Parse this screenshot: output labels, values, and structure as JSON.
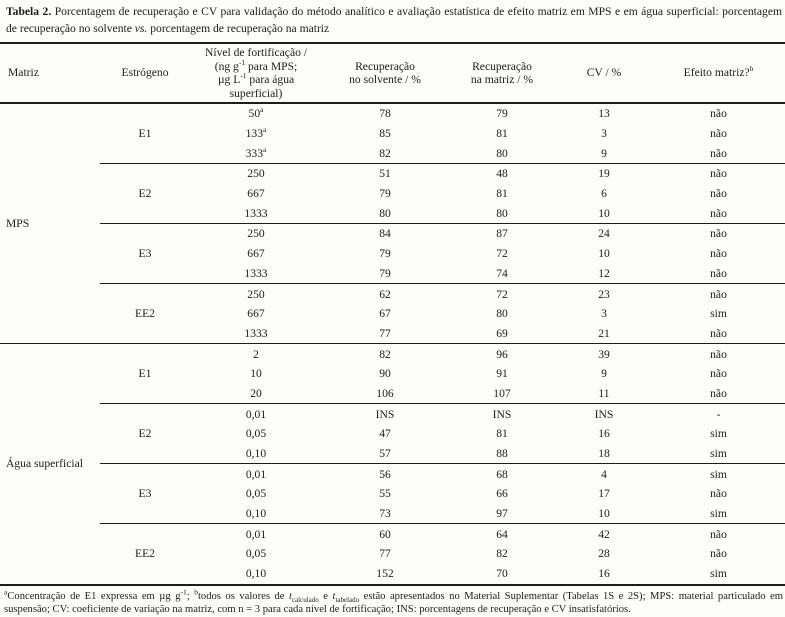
{
  "colors": {
    "background": "#fdfdfc",
    "text": "#1c1c1c",
    "rule": "#1c1c1c"
  },
  "caption": {
    "label": "Tabela 2.",
    "before_vs": " Porcentagem de recuperação e CV para validação do método analítico e avaliação estatística de efeito matriz em MPS e em água superficial: porcentagem de recuperação no solvente ",
    "vs": "vs.",
    "after_vs": " porcentagem de recuperação na matriz"
  },
  "table": {
    "headers": {
      "matrix": "Matriz",
      "estrogen": "Estrógeno",
      "level_line1": "Nível de fortificação /",
      "level_line2_pre": "(ng g",
      "level_line2_sup": "-1",
      "level_line2_post": " para MPS;",
      "level_line3_pre": "µg L",
      "level_line3_sup": "-1",
      "level_line3_post": " para água superficial)",
      "rec_solvent_line1": "Recuperação",
      "rec_solvent_line2": "no solvente / %",
      "rec_matrix_line1": "Recuperação",
      "rec_matrix_line2": "na matriz / %",
      "cv": "CV / %",
      "effect_pre": "Efeito matriz?",
      "effect_sup": "b"
    },
    "sections": [
      {
        "matrix": "MPS",
        "groups": [
          {
            "estrogen": "E1",
            "rows": [
              {
                "level": "50",
                "level_sup": "a",
                "recovery_solvent": "78",
                "recovery_matrix": "79",
                "cv": "13",
                "effect": "não"
              },
              {
                "level": "133",
                "level_sup": "a",
                "recovery_solvent": "85",
                "recovery_matrix": "81",
                "cv": "3",
                "effect": "não"
              },
              {
                "level": "333",
                "level_sup": "a",
                "recovery_solvent": "82",
                "recovery_matrix": "80",
                "cv": "9",
                "effect": "não"
              }
            ]
          },
          {
            "estrogen": "E2",
            "rows": [
              {
                "level": "250",
                "recovery_solvent": "51",
                "recovery_matrix": "48",
                "cv": "19",
                "effect": "não"
              },
              {
                "level": "667",
                "recovery_solvent": "79",
                "recovery_matrix": "81",
                "cv": "6",
                "effect": "não"
              },
              {
                "level": "1333",
                "recovery_solvent": "80",
                "recovery_matrix": "80",
                "cv": "10",
                "effect": "não"
              }
            ]
          },
          {
            "estrogen": "E3",
            "rows": [
              {
                "level": "250",
                "recovery_solvent": "84",
                "recovery_matrix": "87",
                "cv": "24",
                "effect": "não"
              },
              {
                "level": "667",
                "recovery_solvent": "79",
                "recovery_matrix": "72",
                "cv": "10",
                "effect": "não"
              },
              {
                "level": "1333",
                "recovery_solvent": "79",
                "recovery_matrix": "74",
                "cv": "12",
                "effect": "não"
              }
            ]
          },
          {
            "estrogen": "EE2",
            "rows": [
              {
                "level": "250",
                "recovery_solvent": "62",
                "recovery_matrix": "72",
                "cv": "23",
                "effect": "não"
              },
              {
                "level": "667",
                "recovery_solvent": "67",
                "recovery_matrix": "80",
                "cv": "3",
                "effect": "sim"
              },
              {
                "level": "1333",
                "recovery_solvent": "77",
                "recovery_matrix": "69",
                "cv": "21",
                "effect": "não"
              }
            ]
          }
        ]
      },
      {
        "matrix": "Água superficial",
        "groups": [
          {
            "estrogen": "E1",
            "rows": [
              {
                "level": "2",
                "recovery_solvent": "82",
                "recovery_matrix": "96",
                "cv": "39",
                "effect": "não"
              },
              {
                "level": "10",
                "recovery_solvent": "90",
                "recovery_matrix": "91",
                "cv": "9",
                "effect": "não"
              },
              {
                "level": "20",
                "recovery_solvent": "106",
                "recovery_matrix": "107",
                "cv": "11",
                "effect": "não"
              }
            ]
          },
          {
            "estrogen": "E2",
            "rows": [
              {
                "level": "0,01",
                "recovery_solvent": "INS",
                "recovery_matrix": "INS",
                "cv": "INS",
                "effect": "-"
              },
              {
                "level": "0,05",
                "recovery_solvent": "47",
                "recovery_matrix": "81",
                "cv": "16",
                "effect": "sim"
              },
              {
                "level": "0,10",
                "recovery_solvent": "57",
                "recovery_matrix": "88",
                "cv": "18",
                "effect": "sim"
              }
            ]
          },
          {
            "estrogen": "E3",
            "rows": [
              {
                "level": "0,01",
                "recovery_solvent": "56",
                "recovery_matrix": "68",
                "cv": "4",
                "effect": "sim"
              },
              {
                "level": "0,05",
                "recovery_solvent": "55",
                "recovery_matrix": "66",
                "cv": "17",
                "effect": "não"
              },
              {
                "level": "0,10",
                "recovery_solvent": "73",
                "recovery_matrix": "97",
                "cv": "10",
                "effect": "sim"
              }
            ]
          },
          {
            "estrogen": "EE2",
            "rows": [
              {
                "level": "0,01",
                "recovery_solvent": "60",
                "recovery_matrix": "64",
                "cv": "42",
                "effect": "não"
              },
              {
                "level": "0,05",
                "recovery_solvent": "77",
                "recovery_matrix": "82",
                "cv": "28",
                "effect": "não"
              },
              {
                "level": "0,10",
                "recovery_solvent": "152",
                "recovery_matrix": "70",
                "cv": "16",
                "effect": "sim"
              }
            ]
          }
        ]
      }
    ]
  },
  "footnote": {
    "sup_a": "a",
    "part1": "Concentração de E1 expressa em µg g",
    "sup_exp": "-1",
    "part2": "; ",
    "sup_b": "b",
    "part3": "todos os valores de ",
    "t": "t",
    "sub_calc": "calculado",
    "part4": " e ",
    "sub_tab": "tabelado",
    "part5": " estão apresentados no Material Suplementar (Tabelas 1S e 2S); MPS: material particulado em suspensão; CV: coeficiente de variação na matriz, com n = 3 para cada nível de fortificação; INS: porcentagens de recuperação e CV insatisfatórios."
  }
}
